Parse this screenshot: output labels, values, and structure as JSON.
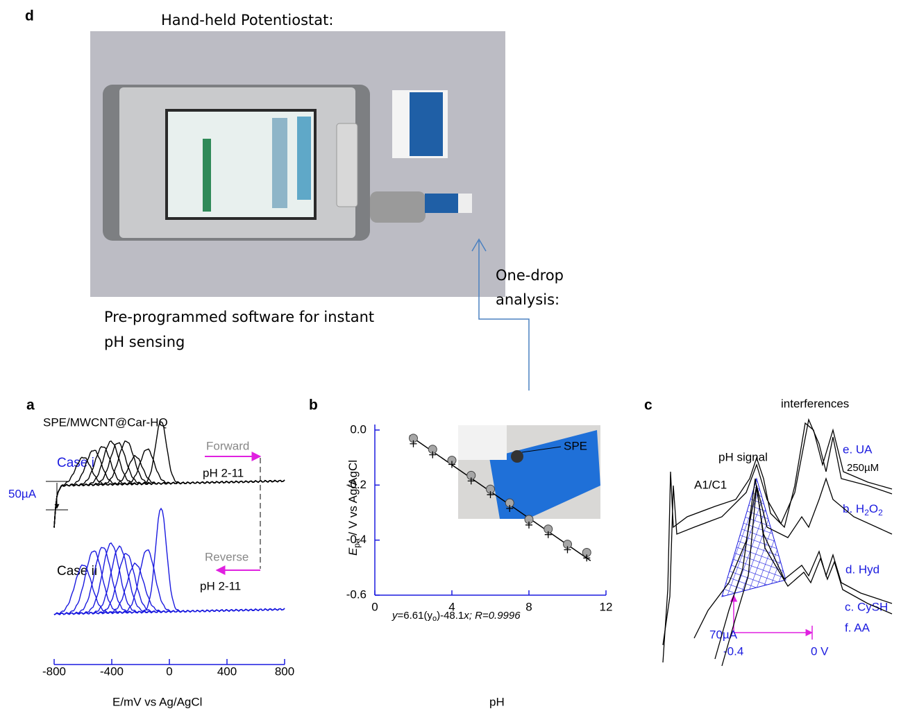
{
  "figure": {
    "panel_d": {
      "label": "d",
      "title": "Hand-held Potentiostat:",
      "caption_line_1": "Pre-programmed software for instant",
      "caption_line_2": "pH sensing",
      "arrow_label_line_1": "One-drop",
      "arrow_label_line_2": "analysis:"
    },
    "panel_a": {
      "label": "a",
      "title": "SPE/MWCNT@Car-HQ",
      "case_1": "Case i",
      "case_2": "Case ii",
      "scale_bar": "50µA",
      "forward": "Forward",
      "forward_range": "pH 2-11",
      "reverse": "Reverse",
      "reverse_range": "pH 2-11",
      "x_axis": {
        "label": "E/mV vs Ag/AgCl",
        "lim": [
          -800,
          800
        ],
        "ticks": [
          -800,
          -400,
          0,
          400,
          800
        ]
      }
    },
    "panel_c": {
      "label": "c",
      "title": "interferences",
      "ph_signal": "pH signal",
      "peak": "A1/C1",
      "ua": "e. UA",
      "concentration": "250µM",
      "h2o2": "b. H",
      "h2o2_sub": "2",
      "h2o2_rest": "O",
      "h2o2_sub2": "2",
      "hyd": "d. Hyd",
      "cysh": "c. CySH",
      "aa": "f. AA",
      "scale_bar": "70µA",
      "x_start": "-0.4",
      "x_end": "0 V"
    },
    "inset": {
      "label": "SPE"
    }
  },
  "chart_data": {
    "type": "scatter",
    "label": "b",
    "xlabel": "pH",
    "ylabel": "E",
    "ylabel_sub": "pa",
    "ylabel_rest": " / V vs Ag/AgCl",
    "annotation": "y",
    "annotation_mid": "=6.61(y",
    "annotation_sub": "o",
    "annotation_rest": ")-48.1",
    "annotation_x": "x",
    "annotation_end": "; R=0.9996",
    "x": [
      2,
      3,
      4,
      5,
      6,
      7,
      8,
      9,
      10,
      11
    ],
    "series": [
      {
        "marker": "circle",
        "color": "#a6a6a6",
        "values": [
          -0.03,
          -0.07,
          -0.11,
          -0.165,
          -0.215,
          -0.265,
          -0.325,
          -0.36,
          -0.415,
          -0.445
        ]
      },
      {
        "marker": "plus",
        "color": "#000000",
        "values": [
          -0.05,
          -0.09,
          -0.125,
          -0.185,
          -0.235,
          -0.285,
          -0.345,
          -0.38,
          -0.435,
          -0.465
        ]
      }
    ],
    "fit": {
      "color": "#000000",
      "x": [
        1.8,
        11.2
      ],
      "values": [
        -0.02,
        -0.475
      ]
    },
    "xlim": [
      0,
      12
    ],
    "xticks": [
      0,
      4,
      8,
      12
    ],
    "ylim": [
      -0.6,
      0.02
    ],
    "yticks": [
      {
        "value": 0,
        "label": "0.0"
      },
      -0.2,
      -0.4,
      -0.6
    ],
    "axis_color": "#1a1adf"
  }
}
